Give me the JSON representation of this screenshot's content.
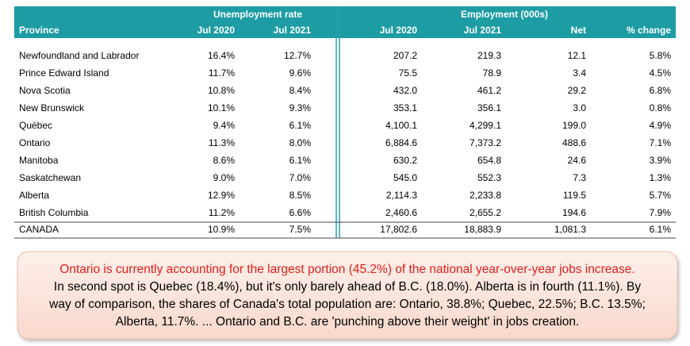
{
  "table": {
    "group_headers": [
      "Unemployment rate",
      "Employment (000s)"
    ],
    "columns": [
      "Province",
      "Jul 2020",
      "Jul 2021",
      "Jul 2020",
      "Jul 2021",
      "Net",
      "% change"
    ],
    "rows": [
      [
        "Newfoundland and Labrador",
        "16.4%",
        "12.7%",
        "207.2",
        "219.3",
        "12.1",
        "5.8%"
      ],
      [
        "Prince Edward Island",
        "11.7%",
        "9.6%",
        "75.5",
        "78.9",
        "3.4",
        "4.5%"
      ],
      [
        "Nova Scotia",
        "10.8%",
        "8.4%",
        "432.0",
        "461.2",
        "29.2",
        "6.8%"
      ],
      [
        "New Brunswick",
        "10.1%",
        "9.3%",
        "353.1",
        "356.1",
        "3.0",
        "0.8%"
      ],
      [
        "Québec",
        "9.4%",
        "6.1%",
        "4,100.1",
        "4,299.1",
        "199.0",
        "4.9%"
      ],
      [
        "Ontario",
        "11.3%",
        "8.0%",
        "6,884.6",
        "7,373.2",
        "488.6",
        "7.1%"
      ],
      [
        "Manitoba",
        "8.6%",
        "6.1%",
        "630.2",
        "654.8",
        "24.6",
        "3.9%"
      ],
      [
        "Saskatchewan",
        "9.0%",
        "7.0%",
        "545.0",
        "552.3",
        "7.3",
        "1.3%"
      ],
      [
        "Alberta",
        "12.9%",
        "8.5%",
        "2,114.3",
        "2,233.8",
        "119.5",
        "5.7%"
      ],
      [
        "British Columbia",
        "11.2%",
        "6.6%",
        "2,460.6",
        "2,655.2",
        "194.6",
        "7.9%"
      ]
    ],
    "total": [
      "CANADA",
      "10.9%",
      "7.5%",
      "17,802.6",
      "18,883.9",
      "1,081.3",
      "6.1%"
    ]
  },
  "note": {
    "highlight": "Ontario is currently accounting for the largest portion (45.2%) of the national year-over-year jobs increase.",
    "lines": [
      "In second spot is Quebec (18.4%), but it's only barely ahead of B.C. (18.0%). Alberta is in fourth (11.1%). By",
      "way of comparison, the shares of Canada's total population are: Ontario, 38.8%; Quebec, 22.5%; B.C. 13.5%;",
      "Alberta, 11.7%. ... Ontario and B.C. are 'punching above their weight' in jobs creation."
    ]
  }
}
